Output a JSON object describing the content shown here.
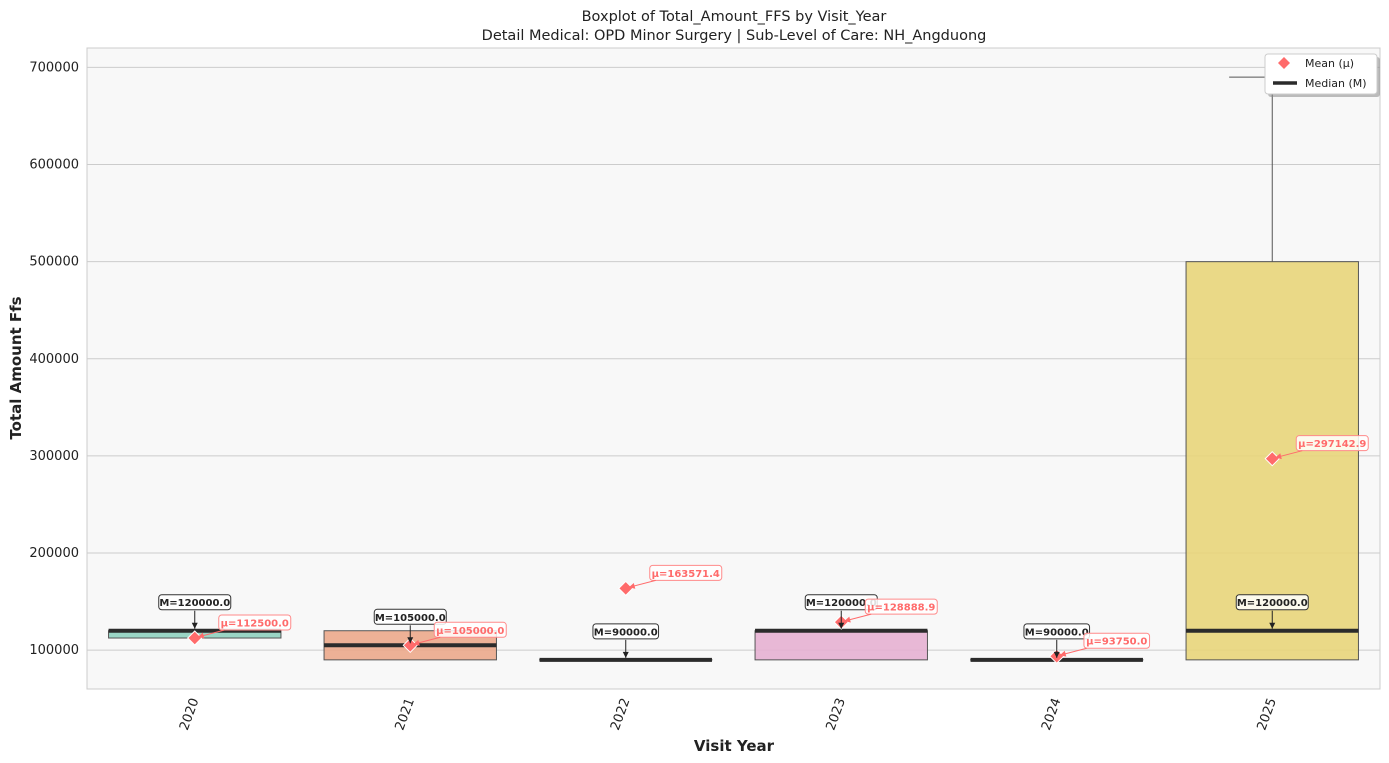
{
  "chart_data": {
    "type": "box",
    "title": "Boxplot of Total_Amount_FFS by Visit_Year",
    "subtitle": "Detail Medical: OPD Minor Surgery | Sub-Level of Care: NH_Angduong",
    "xlabel": "Visit Year",
    "ylabel": "Total Amount Ffs",
    "ylim": [
      60000,
      720000
    ],
    "yticks": [
      100000,
      200000,
      300000,
      400000,
      500000,
      600000,
      700000
    ],
    "grid": "horizontal",
    "legend_position": "top-right",
    "legend": [
      {
        "label": "Mean (μ)",
        "marker": "diamond",
        "color": "#ff6b6b"
      },
      {
        "label": "Median (M)",
        "marker": "line",
        "color": "#2b2b2b"
      }
    ],
    "categories": [
      "2020",
      "2021",
      "2022",
      "2023",
      "2024",
      "2025"
    ],
    "boxes": [
      {
        "category": "2020",
        "q1": 112500,
        "q3": 120000,
        "median": 120000,
        "whisker_low": 112500,
        "whisker_high": 120000,
        "mean": 112500,
        "color": "#8fd0bf",
        "median_label": "M=120000.0",
        "mean_label": "μ=112500.0"
      },
      {
        "category": "2021",
        "q1": 90000,
        "q3": 120000,
        "median": 105000,
        "whisker_low": 90000,
        "whisker_high": 120000,
        "mean": 105000,
        "color": "#eba98b",
        "median_label": "M=105000.0",
        "mean_label": "μ=105000.0"
      },
      {
        "category": "2022",
        "q1": 90000,
        "q3": 90000,
        "median": 90000,
        "whisker_low": 90000,
        "whisker_high": 90000,
        "mean": 163571.4,
        "color": "#b0b8d8",
        "median_label": "M=90000.0",
        "mean_label": "μ=163571.4"
      },
      {
        "category": "2023",
        "q1": 90000,
        "q3": 120000,
        "median": 120000,
        "whisker_low": 90000,
        "whisker_high": 120000,
        "mean": 128888.9,
        "color": "#e5b0d1",
        "median_label": "M=120000.0",
        "mean_label": "μ=128888.9"
      },
      {
        "category": "2024",
        "q1": 90000,
        "q3": 90000,
        "median": 90000,
        "whisker_low": 90000,
        "whisker_high": 90000,
        "mean": 93750,
        "color": "#c2dd8c",
        "median_label": "M=90000.0",
        "mean_label": "μ=93750.0"
      },
      {
        "category": "2025",
        "q1": 90000,
        "q3": 500000,
        "median": 120000,
        "whisker_low": 90000,
        "whisker_high": 690000,
        "mean": 297142.9,
        "color": "#e8d57a",
        "median_label": "M=120000.0",
        "mean_label": "μ=297142.9"
      }
    ]
  }
}
